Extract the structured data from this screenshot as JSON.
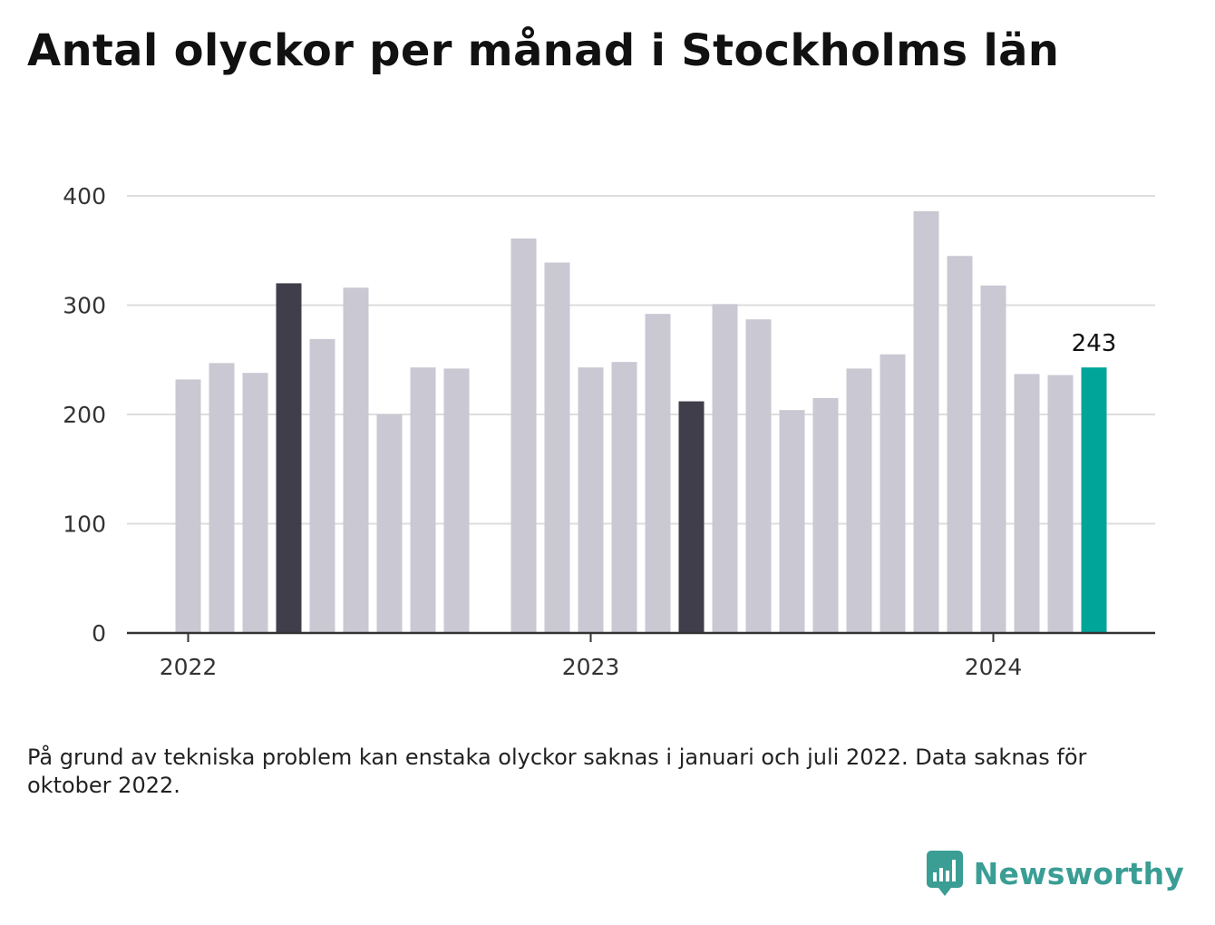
{
  "title": "Antal olyckor per månad i Stockholms län",
  "note": "På grund av tekniska problem kan enstaka olyckor saknas i januari och juli 2022. Data saknas för oktober 2022.",
  "brand": {
    "name": "Newsworthy",
    "icon": "newsworthy-logo-icon",
    "color": "#3a9e95"
  },
  "colors": {
    "default": "#c9c8d3",
    "highlight": "#403e4b",
    "current": "#00a59a",
    "grid": "#dddddd",
    "axis": "#333333"
  },
  "chart_data": {
    "type": "bar",
    "title": "Antal olyckor per månad i Stockholms län",
    "xlabel": "",
    "ylabel": "",
    "ylim": [
      0,
      400
    ],
    "yticks": [
      0,
      100,
      200,
      300,
      400
    ],
    "grid": true,
    "x_tick_labels": [
      {
        "label": "2022",
        "at": "2022-01"
      },
      {
        "label": "2023",
        "at": "2023-01"
      },
      {
        "label": "2024",
        "at": "2024-01"
      }
    ],
    "categories": [
      "2022-01",
      "2022-02",
      "2022-03",
      "2022-04",
      "2022-05",
      "2022-06",
      "2022-07",
      "2022-08",
      "2022-09",
      "2022-10",
      "2022-11",
      "2022-12",
      "2023-01",
      "2023-02",
      "2023-03",
      "2023-04",
      "2023-05",
      "2023-06",
      "2023-07",
      "2023-08",
      "2023-09",
      "2023-10",
      "2023-11",
      "2023-12",
      "2024-01",
      "2024-02",
      "2024-03",
      "2024-04"
    ],
    "values": [
      232,
      247,
      238,
      320,
      269,
      316,
      200,
      243,
      242,
      null,
      361,
      339,
      243,
      248,
      292,
      212,
      301,
      287,
      204,
      215,
      242,
      255,
      386,
      345,
      318,
      237,
      236,
      243
    ],
    "highlight": [
      "2022-04",
      "2023-04"
    ],
    "current": "2024-04",
    "value_label": {
      "at": "2024-04",
      "text": "243"
    }
  }
}
